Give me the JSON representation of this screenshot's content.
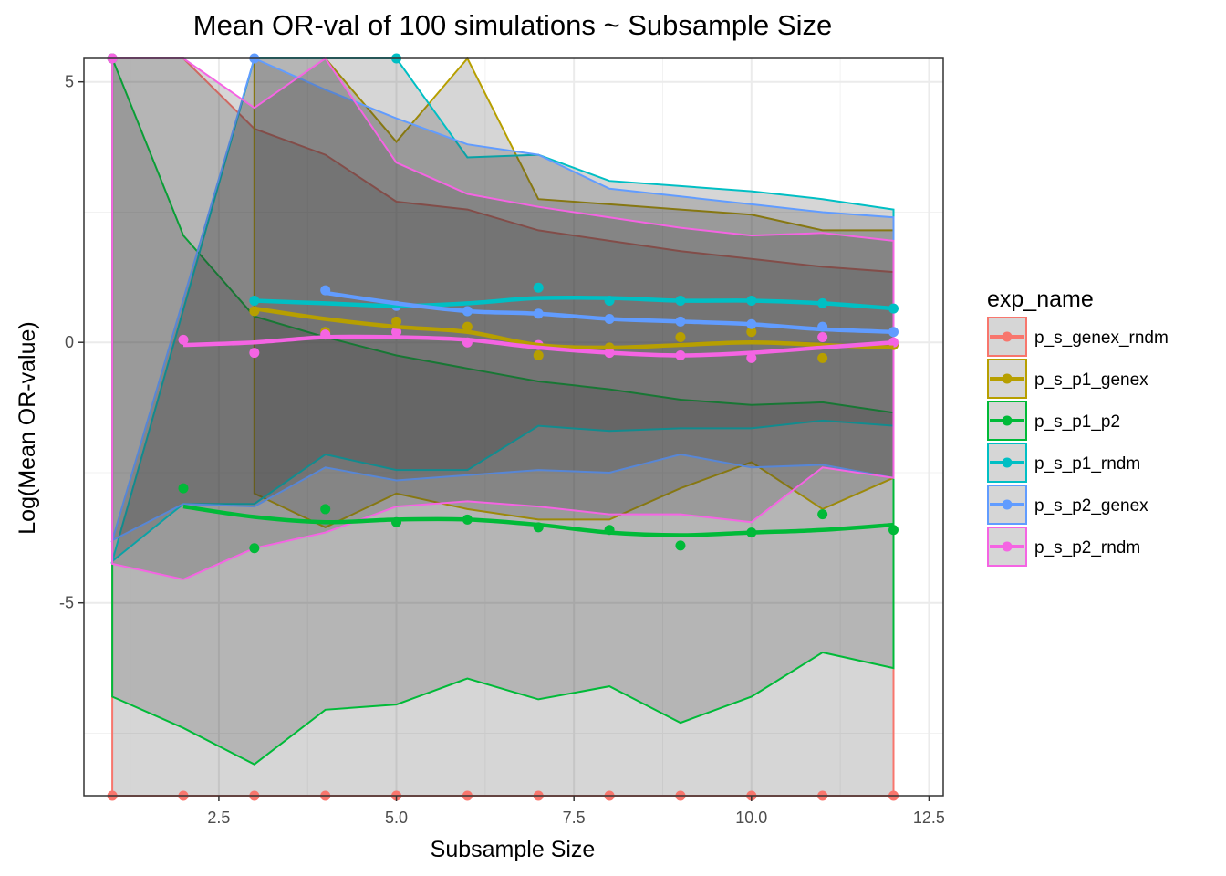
{
  "chart_data": {
    "type": "line",
    "title": "Mean OR-val of 100 simulations ~ Subsample Size",
    "xlabel": "Subsample Size",
    "ylabel": "Log(Mean OR-value)",
    "xlim": [
      0.6,
      12.7
    ],
    "ylim": [
      -8.7,
      5.45
    ],
    "xticks": [
      2.5,
      5.0,
      7.5,
      10.0,
      12.5
    ],
    "xtick_labels": [
      "2.5",
      "5.0",
      "7.5",
      "10.0",
      "12.5"
    ],
    "yticks": [
      -5,
      0,
      5
    ],
    "ytick_labels": [
      "-5",
      "0",
      "5"
    ],
    "grid": true,
    "legend": {
      "title": "exp_name",
      "position": "right"
    },
    "series": [
      {
        "name": "p_s_genex_rndm",
        "color": "#F8766D",
        "x": [
          1,
          2,
          3,
          4,
          5,
          6,
          7,
          8,
          9,
          10,
          11,
          12
        ],
        "points": [
          -8.7,
          -8.7,
          -8.7,
          -8.7,
          -8.7,
          -8.7,
          -8.7,
          -8.7,
          -8.7,
          -8.7,
          -8.7,
          -8.7
        ],
        "upper": [
          5.45,
          5.45,
          4.1,
          3.6,
          2.7,
          2.55,
          2.15,
          1.95,
          1.75,
          1.6,
          1.45,
          1.35
        ],
        "lower": [
          -8.7,
          -8.7,
          -8.7,
          -8.7,
          -8.7,
          -8.7,
          -8.7,
          -8.7,
          -8.7,
          -8.7,
          -8.7,
          -8.7
        ],
        "smooth": null
      },
      {
        "name": "p_s_p1_genex",
        "color": "#B79F00",
        "x": [
          3,
          4,
          5,
          6,
          7,
          8,
          9,
          10,
          11,
          12
        ],
        "points": [
          0.6,
          0.2,
          0.4,
          0.3,
          -0.25,
          -0.1,
          0.1,
          0.2,
          -0.3,
          -0.05
        ],
        "upper": [
          5.45,
          5.45,
          3.85,
          5.45,
          2.75,
          2.65,
          2.55,
          2.45,
          2.15,
          2.15
        ],
        "lower": [
          -2.9,
          -3.55,
          -2.9,
          -3.2,
          -3.4,
          -3.4,
          -2.8,
          -2.3,
          -3.2,
          -2.6
        ],
        "smooth": [
          0.65,
          0.45,
          0.3,
          0.2,
          -0.05,
          -0.1,
          -0.05,
          0.0,
          -0.05,
          -0.1
        ]
      },
      {
        "name": "p_s_p1_p2",
        "color": "#00BA38",
        "x": [
          1,
          2,
          3,
          4,
          5,
          6,
          7,
          8,
          9,
          10,
          11,
          12
        ],
        "points": [
          5.45,
          -2.8,
          -3.95,
          -3.2,
          -3.45,
          -3.4,
          -3.55,
          -3.6,
          -3.9,
          -3.65,
          -3.3,
          -3.6
        ],
        "upper": [
          5.45,
          2.05,
          0.5,
          0.1,
          -0.25,
          -0.5,
          -0.75,
          -0.9,
          -1.1,
          -1.2,
          -1.15,
          -1.35
        ],
        "lower": [
          -6.8,
          -7.4,
          -8.1,
          -7.05,
          -6.95,
          -6.45,
          -6.85,
          -6.6,
          -7.3,
          -6.8,
          -5.95,
          -6.25
        ],
        "smooth": [
          null,
          -3.15,
          -3.35,
          -3.45,
          -3.4,
          -3.4,
          -3.5,
          -3.65,
          -3.7,
          -3.65,
          -3.6,
          -3.5
        ]
      },
      {
        "name": "p_s_p1_rndm",
        "color": "#00BFC4",
        "x": [
          1,
          2,
          3,
          4,
          5,
          6,
          7,
          8,
          9,
          10,
          11,
          12
        ],
        "points": [
          null,
          null,
          0.8,
          null,
          5.45,
          0.6,
          1.05,
          0.8,
          0.8,
          0.8,
          0.75,
          0.65
        ],
        "upper": [
          null,
          null,
          5.45,
          5.45,
          5.45,
          3.55,
          3.6,
          3.1,
          3.0,
          2.9,
          2.75,
          2.55
        ],
        "lower": [
          -4.2,
          -3.1,
          -3.1,
          -2.15,
          -2.45,
          -2.45,
          -1.6,
          -1.7,
          -1.65,
          -1.65,
          -1.5,
          -1.6
        ],
        "smooth": [
          null,
          null,
          0.8,
          0.75,
          0.7,
          0.75,
          0.85,
          0.85,
          0.8,
          0.8,
          0.75,
          0.65
        ]
      },
      {
        "name": "p_s_p2_genex",
        "color": "#619CFF",
        "x": [
          1,
          2,
          3,
          4,
          5,
          6,
          7,
          8,
          9,
          10,
          11,
          12
        ],
        "points": [
          null,
          null,
          5.45,
          1.0,
          0.7,
          0.6,
          0.55,
          0.45,
          0.4,
          0.35,
          0.3,
          0.2
        ],
        "upper": [
          null,
          null,
          5.45,
          4.85,
          4.3,
          3.8,
          3.6,
          2.95,
          2.8,
          2.65,
          2.5,
          2.4
        ],
        "lower": [
          -3.8,
          -3.1,
          -3.15,
          -2.4,
          -2.65,
          -2.55,
          -2.45,
          -2.5,
          -2.15,
          -2.4,
          -2.35,
          -2.6
        ],
        "smooth": [
          null,
          null,
          null,
          0.95,
          0.75,
          0.6,
          0.55,
          0.45,
          0.4,
          0.35,
          0.25,
          0.2
        ]
      },
      {
        "name": "p_s_p2_rndm",
        "color": "#F564E3",
        "x": [
          1,
          2,
          3,
          4,
          5,
          6,
          7,
          8,
          9,
          10,
          11,
          12
        ],
        "points": [
          5.45,
          0.05,
          -0.2,
          0.15,
          0.2,
          0.0,
          -0.05,
          -0.2,
          -0.25,
          -0.3,
          0.1,
          0.0
        ],
        "upper": [
          5.45,
          5.45,
          4.5,
          5.45,
          3.45,
          2.85,
          2.6,
          2.4,
          2.2,
          2.05,
          2.1,
          1.95
        ],
        "lower": [
          -4.25,
          -4.55,
          -3.95,
          -3.65,
          -3.15,
          -3.05,
          -3.15,
          -3.3,
          -3.3,
          -3.45,
          -2.4,
          -2.6
        ],
        "smooth": [
          null,
          -0.05,
          0.0,
          0.1,
          0.1,
          0.05,
          -0.1,
          -0.2,
          -0.25,
          -0.2,
          -0.1,
          0.0
        ]
      }
    ]
  }
}
